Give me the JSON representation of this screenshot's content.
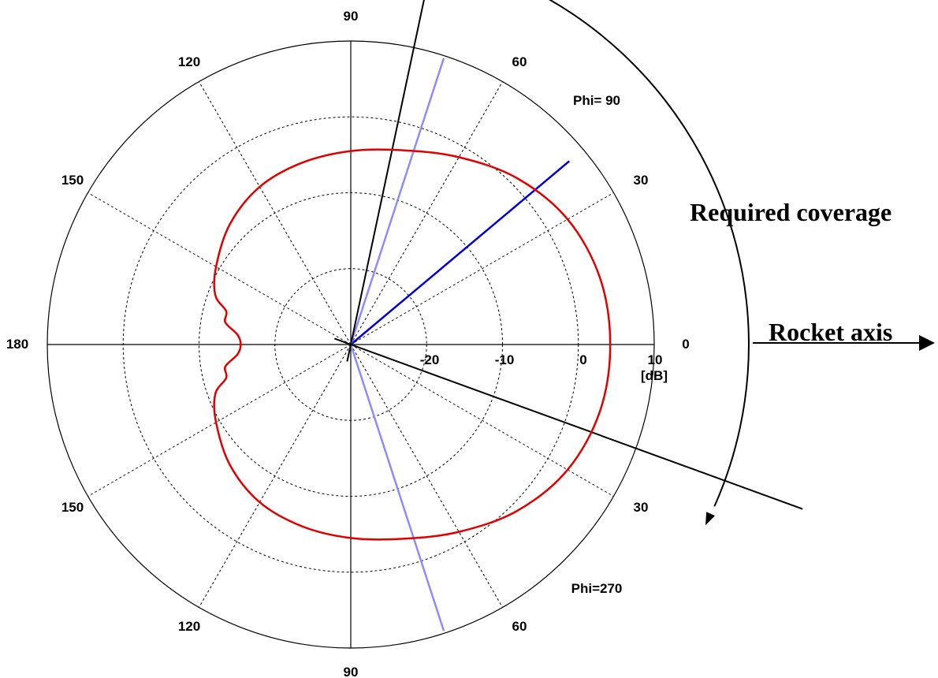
{
  "chart_data": {
    "type": "polar",
    "angle_labels_upper": [
      "90",
      "60",
      "30",
      "0",
      "120",
      "150",
      "180"
    ],
    "angle_labels_lower": [
      "30",
      "60",
      "90",
      "120",
      "150"
    ],
    "radial_ticks": [
      "-20",
      "-10",
      "0",
      "10"
    ],
    "radial_unit": "[dB]",
    "rlim_db": [
      -30,
      10
    ],
    "cut_labels": [
      "Phi= 90",
      "Phi=270"
    ],
    "annotations": [
      "Required coverage",
      "Rocket axis"
    ],
    "grid": true,
    "series": [
      {
        "color": "#e00000",
        "theta_deg": [
          0,
          15,
          30,
          45,
          60,
          75,
          90,
          105,
          120,
          135,
          150,
          160,
          165,
          170,
          175,
          180,
          185,
          190,
          195,
          200,
          210,
          225,
          240,
          255,
          270,
          285,
          300,
          315,
          330,
          345
        ],
        "gain_db": [
          4.2,
          4.0,
          3.0,
          1.0,
          -1.5,
          -3.5,
          -4.5,
          -5.2,
          -6.0,
          -7.5,
          -9.5,
          -11.0,
          -13.0,
          -13.2,
          -15.0,
          -15.5,
          -15.0,
          -13.2,
          -13.0,
          -11.0,
          -9.5,
          -7.5,
          -6.0,
          -5.2,
          -4.5,
          -3.5,
          -1.5,
          1.0,
          3.0,
          4.0
        ]
      }
    ],
    "reference_lines": [
      {
        "color": "#0000dd",
        "theta_deg": 40,
        "kind": "main-beam"
      },
      {
        "color": "#8c8cff",
        "theta_deg": 72,
        "kind": "phi-90-axis"
      },
      {
        "color": "#8c8cff",
        "theta_deg": 288,
        "kind": "phi-270-axis"
      },
      {
        "color": "#000000",
        "theta_deg": 78,
        "kind": "coverage-edge"
      },
      {
        "color": "#000000",
        "theta_deg": 340,
        "kind": "coverage-edge"
      }
    ]
  }
}
